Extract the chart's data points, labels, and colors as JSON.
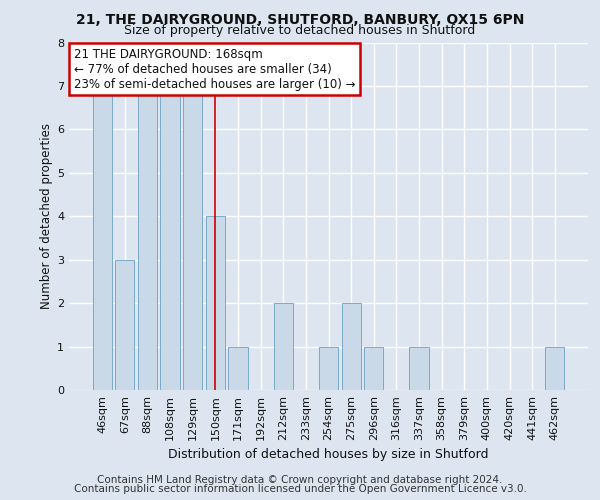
{
  "title1": "21, THE DAIRYGROUND, SHUTFORD, BANBURY, OX15 6PN",
  "title2": "Size of property relative to detached houses in Shutford",
  "xlabel": "Distribution of detached houses by size in Shutford",
  "ylabel": "Number of detached properties",
  "categories": [
    "46sqm",
    "67sqm",
    "88sqm",
    "108sqm",
    "129sqm",
    "150sqm",
    "171sqm",
    "192sqm",
    "212sqm",
    "233sqm",
    "254sqm",
    "275sqm",
    "296sqm",
    "316sqm",
    "337sqm",
    "358sqm",
    "379sqm",
    "400sqm",
    "420sqm",
    "441sqm",
    "462sqm"
  ],
  "values": [
    7,
    3,
    7,
    7,
    7,
    4,
    1,
    0,
    2,
    0,
    1,
    2,
    1,
    0,
    1,
    0,
    0,
    0,
    0,
    0,
    1
  ],
  "bar_color": "#c9d9e8",
  "bar_edge_color": "#7aaac8",
  "highlight_index": 5,
  "highlight_line_color": "#cc0000",
  "ylim": [
    0,
    8
  ],
  "yticks": [
    0,
    1,
    2,
    3,
    4,
    5,
    6,
    7,
    8
  ],
  "annotation_title": "21 THE DAIRYGROUND: 168sqm",
  "annotation_line1": "← 77% of detached houses are smaller (34)",
  "annotation_line2": "23% of semi-detached houses are larger (10) →",
  "footer1": "Contains HM Land Registry data © Crown copyright and database right 2024.",
  "footer2": "Contains public sector information licensed under the Open Government Licence v3.0.",
  "bg_color": "#dde6f0",
  "plot_bg_color": "#dde6f0",
  "grid_color": "#ffffff",
  "title1_fontsize": 10,
  "title2_fontsize": 9,
  "xlabel_fontsize": 9,
  "ylabel_fontsize": 8.5,
  "tick_fontsize": 8,
  "annotation_fontsize": 8.5,
  "footer_fontsize": 7.5
}
